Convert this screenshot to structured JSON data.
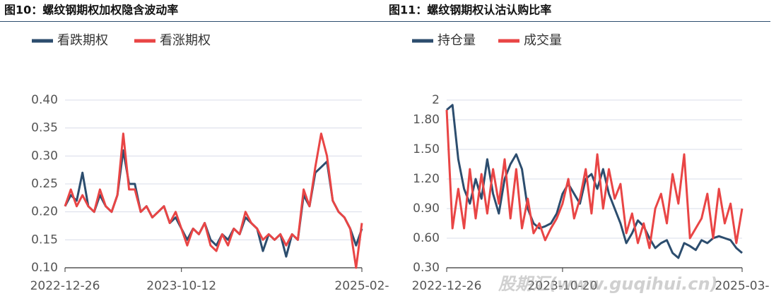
{
  "chart_data": [
    {
      "type": "line",
      "title": "图10：螺纹钢期权加权隐含波动率",
      "categories": [
        "2022-12-26",
        null,
        null,
        null,
        null,
        null,
        null,
        null,
        null,
        null,
        null,
        null,
        null,
        null,
        null,
        null,
        null,
        null,
        null,
        null,
        "2023-10-12",
        null,
        null,
        null,
        null,
        null,
        null,
        null,
        null,
        null,
        null,
        null,
        null,
        null,
        null,
        null,
        null,
        null,
        null,
        null,
        null,
        null,
        null,
        null,
        null,
        null,
        null,
        null,
        null,
        null,
        null,
        "2025-02-"
      ],
      "series": [
        {
          "name": "看跌期权",
          "color": "#2c4d6e",
          "values": [
            0.21,
            0.23,
            0.22,
            0.27,
            0.21,
            0.2,
            0.23,
            0.21,
            0.2,
            0.23,
            0.31,
            0.25,
            0.25,
            0.2,
            0.21,
            0.19,
            0.2,
            0.21,
            0.18,
            0.19,
            0.17,
            0.15,
            0.17,
            0.16,
            0.18,
            0.15,
            0.14,
            0.16,
            0.15,
            0.17,
            0.16,
            0.19,
            0.18,
            0.17,
            0.13,
            0.16,
            0.15,
            0.16,
            0.12,
            0.16,
            0.15,
            0.23,
            0.21,
            0.27,
            0.28,
            0.29,
            0.22,
            0.2,
            0.19,
            0.17,
            0.14,
            0.17
          ]
        },
        {
          "name": "看涨期权",
          "color": "#e94545",
          "values": [
            0.21,
            0.24,
            0.21,
            0.23,
            0.21,
            0.2,
            0.24,
            0.21,
            0.2,
            0.23,
            0.34,
            0.24,
            0.24,
            0.2,
            0.21,
            0.19,
            0.2,
            0.21,
            0.18,
            0.2,
            0.17,
            0.14,
            0.17,
            0.16,
            0.18,
            0.14,
            0.13,
            0.16,
            0.14,
            0.17,
            0.16,
            0.2,
            0.18,
            0.17,
            0.15,
            0.16,
            0.15,
            0.16,
            0.14,
            0.16,
            0.15,
            0.24,
            0.21,
            0.28,
            0.34,
            0.3,
            0.22,
            0.2,
            0.19,
            0.17,
            0.1,
            0.18
          ]
        }
      ],
      "ylim": [
        0.1,
        0.4
      ],
      "yticks": [
        {
          "value": 0.1,
          "label": "0.10"
        },
        {
          "value": 0.15,
          "label": "0.15"
        },
        {
          "value": 0.2,
          "label": "0.20"
        },
        {
          "value": 0.25,
          "label": "0.25"
        },
        {
          "value": 0.3,
          "label": "0.30"
        },
        {
          "value": 0.35,
          "label": "0.35"
        },
        {
          "value": 0.4,
          "label": "0.40"
        }
      ],
      "grid": true
    },
    {
      "type": "line",
      "title": "图11：螺纹钢期权认沽认购比率",
      "categories": [
        "2022-12-26",
        null,
        null,
        null,
        null,
        null,
        null,
        null,
        null,
        null,
        null,
        null,
        null,
        null,
        null,
        null,
        null,
        null,
        null,
        null,
        "2023-10-20",
        null,
        null,
        null,
        null,
        null,
        null,
        null,
        null,
        null,
        null,
        null,
        null,
        null,
        null,
        null,
        null,
        null,
        null,
        null,
        null,
        null,
        null,
        null,
        null,
        null,
        null,
        null,
        null,
        null,
        null,
        "2025-03-"
      ],
      "series": [
        {
          "name": "持仓量",
          "color": "#2c4d6e",
          "values": [
            1.9,
            1.95,
            1.4,
            1.1,
            0.95,
            1.2,
            1.0,
            1.4,
            1.05,
            0.85,
            1.2,
            1.35,
            1.45,
            1.3,
            0.9,
            0.75,
            0.7,
            0.72,
            0.75,
            0.85,
            1.05,
            1.15,
            1.05,
            0.95,
            1.2,
            1.25,
            1.1,
            1.3,
            1.05,
            0.9,
            0.75,
            0.55,
            0.65,
            0.78,
            0.72,
            0.6,
            0.5,
            0.55,
            0.58,
            0.45,
            0.4,
            0.55,
            0.52,
            0.48,
            0.58,
            0.55,
            0.6,
            0.62,
            0.6,
            0.58,
            0.5,
            0.45
          ]
        },
        {
          "name": "成交量",
          "color": "#e94545",
          "values": [
            1.9,
            0.7,
            1.1,
            0.7,
            1.3,
            0.8,
            1.25,
            0.85,
            1.3,
            0.95,
            1.4,
            0.8,
            1.3,
            0.7,
            1.0,
            0.65,
            0.75,
            0.58,
            0.7,
            0.8,
            0.95,
            1.2,
            0.8,
            1.0,
            1.3,
            0.85,
            1.45,
            0.9,
            1.3,
            1.0,
            1.15,
            0.65,
            0.85,
            0.55,
            0.75,
            0.5,
            0.9,
            1.05,
            0.75,
            1.25,
            0.95,
            1.45,
            0.6,
            0.7,
            0.8,
            1.05,
            0.6,
            1.1,
            0.75,
            0.95,
            0.55,
            0.9
          ]
        }
      ],
      "ylim": [
        0.3,
        2.0
      ],
      "yticks": [
        {
          "value": 0.3,
          "label": "0.30"
        },
        {
          "value": 0.6,
          "label": "0.60"
        },
        {
          "value": 0.9,
          "label": "0.90"
        },
        {
          "value": 1.2,
          "label": "1.20"
        },
        {
          "value": 1.5,
          "label": "1.50"
        },
        {
          "value": 1.8,
          "label": "1.80"
        },
        2
      ],
      "grid": true
    }
  ],
  "watermark": "股期汇(www.guqihui.cn)"
}
